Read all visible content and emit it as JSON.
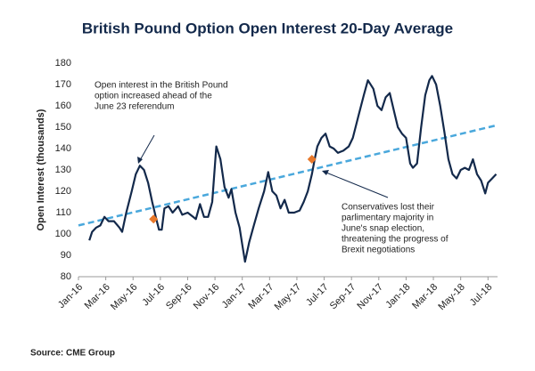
{
  "chart_data": {
    "type": "line",
    "title": "British Pound Option Open Interest 20-Day Average",
    "ylabel": "Open Interest (thousands)",
    "source": "Source: CME Group",
    "xlim": [
      0,
      30.7
    ],
    "xticks": [
      {
        "value": 0,
        "label": "Jan-16"
      },
      {
        "value": 2,
        "label": "Mar-16"
      },
      {
        "value": 4,
        "label": "May-16"
      },
      {
        "value": 6,
        "label": "Jul-16"
      },
      {
        "value": 8,
        "label": "Sep-16"
      },
      {
        "value": 10,
        "label": "Nov-16"
      },
      {
        "value": 12,
        "label": "Jan-17"
      },
      {
        "value": 14,
        "label": "Mar-17"
      },
      {
        "value": 16,
        "label": "May-17"
      },
      {
        "value": 18,
        "label": "Jul-17"
      },
      {
        "value": 20,
        "label": "Sep-17"
      },
      {
        "value": 22,
        "label": "Nov-17"
      },
      {
        "value": 24,
        "label": "Jan-18"
      },
      {
        "value": 26,
        "label": "Mar-18"
      },
      {
        "value": 28,
        "label": "May-18"
      },
      {
        "value": 30,
        "label": "Jul-18"
      }
    ],
    "ylim": [
      80,
      180
    ],
    "yticks": [
      80,
      90,
      100,
      110,
      120,
      130,
      140,
      150,
      160,
      170,
      180
    ],
    "grid": false,
    "series": [
      {
        "color": "#13294b",
        "x": [
          0.8,
          1.0,
          1.3,
          1.6,
          1.9,
          2.2,
          2.6,
          3.0,
          3.2,
          3.5,
          3.9,
          4.2,
          4.5,
          4.8,
          5.1,
          5.4,
          5.7,
          5.9,
          6.1,
          6.3,
          6.6,
          6.9,
          7.3,
          7.6,
          8.0,
          8.4,
          8.6,
          8.9,
          9.2,
          9.5,
          9.8,
          10.1,
          10.4,
          10.7,
          11.0,
          11.2,
          11.5,
          11.8,
          12.0,
          12.2,
          12.5,
          12.8,
          13.2,
          13.6,
          13.9,
          14.2,
          14.5,
          14.8,
          15.1,
          15.4,
          15.8,
          16.2,
          16.5,
          16.8,
          17.1,
          17.3,
          17.5,
          17.8,
          18.1,
          18.4,
          18.7,
          19.0,
          19.4,
          19.8,
          20.1,
          20.5,
          20.9,
          21.2,
          21.6,
          21.9,
          22.2,
          22.5,
          22.8,
          23.1,
          23.4,
          23.7,
          24.0,
          24.3,
          24.5,
          24.8,
          25.1,
          25.4,
          25.7,
          25.9,
          26.2,
          26.5,
          26.8,
          27.1,
          27.4,
          27.7,
          28.0,
          28.3,
          28.6,
          28.9,
          29.2,
          29.5,
          29.8,
          30.0,
          30.3,
          30.6
        ],
        "values": [
          97,
          101,
          103,
          104,
          108,
          106,
          106,
          103,
          101,
          110,
          120,
          128,
          132,
          130,
          124,
          115,
          107,
          102,
          102,
          112,
          113,
          110,
          113,
          109,
          110,
          108,
          107,
          114,
          108,
          108,
          115,
          141,
          135,
          122,
          117,
          121,
          110,
          103,
          95,
          87,
          96,
          103,
          112,
          120,
          129,
          120,
          118,
          112,
          116,
          110,
          110,
          111,
          115,
          120,
          128,
          135,
          141,
          145,
          147,
          141,
          140,
          138,
          139,
          141,
          145,
          155,
          165,
          172,
          168,
          160,
          158,
          164,
          166,
          158,
          150,
          147,
          145,
          133,
          131,
          133,
          150,
          165,
          172,
          174,
          170,
          160,
          148,
          135,
          128,
          126,
          130,
          131,
          130,
          135,
          128,
          125,
          119,
          124,
          126,
          128
        ]
      }
    ],
    "trend": {
      "color": "#4aa8dc",
      "x": [
        0,
        30.7
      ],
      "values": [
        104,
        151
      ]
    },
    "markers": {
      "color": "#e8782a",
      "x": [
        5.5,
        17.1
      ],
      "values": [
        107,
        135
      ]
    },
    "annotations": [
      {
        "lines": [
          "Open interest in the British Pound",
          "option increased ahead of the",
          "June 23 referendum"
        ]
      },
      {
        "lines": [
          "Conservatives lost their",
          "parlimentary majority in",
          "June's snap election,",
          "threatening the progress of",
          "Brexit negotiations"
        ]
      }
    ]
  }
}
